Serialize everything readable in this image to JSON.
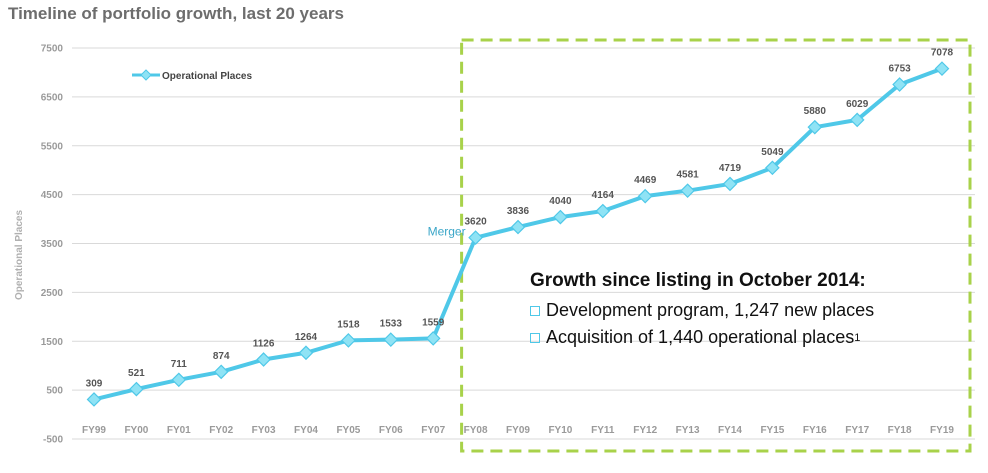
{
  "title": "Timeline of portfolio growth, last 20 years",
  "chart_data": {
    "type": "line",
    "title": "Timeline of portfolio growth, last 20 years",
    "ylabel": "Operational Places",
    "xlabel": "",
    "categories": [
      "FY99",
      "FY00",
      "FY01",
      "FY02",
      "FY03",
      "FY04",
      "FY05",
      "FY06",
      "FY07",
      "FY08",
      "FY09",
      "FY10",
      "FY11",
      "FY12",
      "FY13",
      "FY14",
      "FY15",
      "FY16",
      "FY17",
      "FY18",
      "FY19"
    ],
    "series": [
      {
        "name": "Operational Places",
        "values": [
          309,
          521,
          711,
          874,
          1126,
          1264,
          1518,
          1533,
          1559,
          3620,
          3836,
          4040,
          4164,
          4469,
          4581,
          4719,
          5049,
          5880,
          6029,
          6753,
          7078
        ]
      }
    ],
    "ylim": [
      -500,
      7500
    ],
    "yticks": [
      "-500",
      "500",
      "1500",
      "2500",
      "3500",
      "4500",
      "5500",
      "6500",
      "7500"
    ],
    "grid": true,
    "legend": "top-left",
    "line_color": "#4fc8e8",
    "marker_color": "#8fe3f5",
    "annotation": "Merger",
    "highlight_box_color": "#a8d24a"
  },
  "callout": {
    "title": "Growth since listing in October 2014:",
    "items": [
      {
        "text": "Development program, 1,247 new places",
        "sup": ""
      },
      {
        "text": "Acquisition of 1,440 operational places",
        "sup": "1"
      }
    ]
  }
}
